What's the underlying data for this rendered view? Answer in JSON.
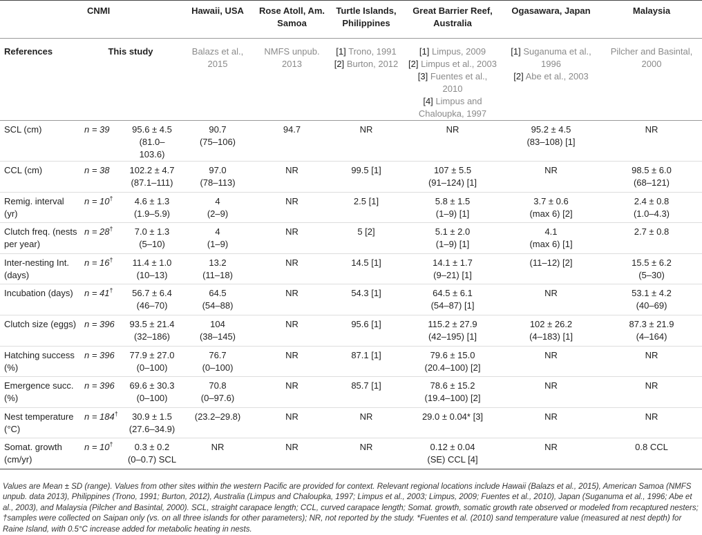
{
  "table": {
    "headers": [
      "CNMI",
      "Hawaii, USA",
      "Rose Atoll, Am. Samoa",
      "Turtle Islands, Philippines",
      "Great Barrier Reef, Australia",
      "Ogasawara, Japan",
      "Malaysia"
    ],
    "references": {
      "label": "References",
      "cells": [
        [
          {
            "text": "This study"
          }
        ],
        [
          {
            "text": "Balazs et al., 2015"
          }
        ],
        [
          {
            "text": "NMFS unpub. 2013"
          }
        ],
        [
          {
            "tag": "[1]",
            "text": "Trono, 1991"
          },
          {
            "tag": "[2]",
            "text": "Burton, 2012"
          }
        ],
        [
          {
            "tag": "[1]",
            "text": "Limpus, 2009"
          },
          {
            "tag": "[2]",
            "text": "Limpus et al., 2003"
          },
          {
            "tag": "[3]",
            "text": "Fuentes et al., 2010"
          },
          {
            "tag": "[4]",
            "text": "Limpus and Chaloupka, 1997"
          }
        ],
        [
          {
            "tag": "[1]",
            "text": "Suganuma et al., 1996"
          },
          {
            "tag": "[2]",
            "text": "Abe et al., 2003"
          }
        ],
        [
          {
            "text": "Pilcher and Basintal, 2000"
          }
        ]
      ]
    },
    "rows": [
      {
        "label": "SCL (cm)",
        "n": "n = 39",
        "cells": [
          [
            "95.6 ± 4.5",
            "(81.0–103.6)"
          ],
          [
            "90.7",
            "(75–106)"
          ],
          [
            "94.7"
          ],
          [
            "NR"
          ],
          [
            "NR"
          ],
          [
            "95.2 ± 4.5",
            "(83–108) [1]"
          ],
          [
            "NR"
          ]
        ]
      },
      {
        "label": "CCL (cm)",
        "n": "n = 38",
        "cells": [
          [
            "102.2 ± 4.7",
            "(87.1–111)"
          ],
          [
            "97.0",
            "(78–113)"
          ],
          [
            "NR"
          ],
          [
            "99.5 [1]"
          ],
          [
            "107 ± 5.5",
            "(91–124) [1]"
          ],
          [
            "NR"
          ],
          [
            "98.5 ± 6.0",
            "(68–121)"
          ]
        ]
      },
      {
        "label": "Remig. interval (yr)",
        "n": "n = 10",
        "note": "†",
        "cells": [
          [
            "4.6 ± 1.3",
            "(1.9–5.9)"
          ],
          [
            "4",
            "(2–9)"
          ],
          [
            "NR"
          ],
          [
            "2.5 [1]"
          ],
          [
            "5.8 ± 1.5",
            "(1–9) [1]"
          ],
          [
            "3.7 ± 0.6",
            "(max 6) [2]"
          ],
          [
            "2.4 ± 0.8",
            "(1.0–4.3)"
          ]
        ]
      },
      {
        "label": "Clutch freq. (nests per year)",
        "n": "n = 28",
        "note": "†",
        "cells": [
          [
            "7.0 ± 1.3",
            "(5–10)"
          ],
          [
            "4",
            "(1–9)"
          ],
          [
            "NR"
          ],
          [
            "5 [2]"
          ],
          [
            "5.1 ± 2.0",
            "(1–9) [1]"
          ],
          [
            "4.1",
            "(max 6) [1]"
          ],
          [
            "2.7 ± 0.8"
          ]
        ]
      },
      {
        "label": "Inter-nesting Int. (days)",
        "n": "n = 16",
        "note": "†",
        "cells": [
          [
            "11.4 ± 1.0",
            "(10–13)"
          ],
          [
            "13.2",
            "(11–18)"
          ],
          [
            "NR"
          ],
          [
            "14.5 [1]"
          ],
          [
            "14.1 ± 1.7",
            "(9–21) [1]"
          ],
          [
            "(11–12) [2]"
          ],
          [
            "15.5 ± 6.2",
            "(5–30)"
          ]
        ]
      },
      {
        "label": "Incubation (days)",
        "n": "n = 41",
        "note": "†",
        "cells": [
          [
            "56.7 ± 6.4",
            "(46–70)"
          ],
          [
            "64.5",
            "(54–88)"
          ],
          [
            "NR"
          ],
          [
            "54.3 [1]"
          ],
          [
            "64.5 ± 6.1",
            "(54–87) [1]"
          ],
          [
            "NR"
          ],
          [
            "53.1 ± 4.2",
            "(40–69)"
          ]
        ]
      },
      {
        "label": "Clutch size (eggs)",
        "n": "n = 396",
        "cells": [
          [
            "93.5 ± 21.4",
            "(32–186)"
          ],
          [
            "104",
            "(38–145)"
          ],
          [
            "NR"
          ],
          [
            "95.6 [1]"
          ],
          [
            "115.2 ± 27.9",
            "(42–195) [1]"
          ],
          [
            "102 ± 26.2",
            "(4–183) [1]"
          ],
          [
            "87.3 ± 21.9",
            "(4–164)"
          ]
        ]
      },
      {
        "label": "Hatching success (%)",
        "n": "n = 396",
        "cells": [
          [
            "77.9 ± 27.0",
            "(0–100)"
          ],
          [
            "76.7",
            "(0–100)"
          ],
          [
            "NR"
          ],
          [
            "87.1 [1]"
          ],
          [
            "79.6 ± 15.0",
            "(20.4–100) [2]"
          ],
          [
            "NR"
          ],
          [
            "NR"
          ]
        ]
      },
      {
        "label": "Emergence succ. (%)",
        "n": "n = 396",
        "cells": [
          [
            "69.6 ± 30.3",
            "(0–100)"
          ],
          [
            "70.8",
            "(0–97.6)"
          ],
          [
            "NR"
          ],
          [
            "85.7 [1]"
          ],
          [
            "78.6 ± 15.2",
            "(19.4–100) [2]"
          ],
          [
            "NR"
          ],
          [
            "NR"
          ]
        ]
      },
      {
        "label": "Nest temperature (°C)",
        "n": "n = 184",
        "note": "†",
        "cells": [
          [
            "30.9 ± 1.5",
            "(27.6–34.9)"
          ],
          [
            "(23.2–29.8)"
          ],
          [
            "NR"
          ],
          [
            "NR"
          ],
          [
            "29.0 ± 0.04* [3]"
          ],
          [
            "NR"
          ],
          [
            "NR"
          ]
        ]
      },
      {
        "label": "Somat. growth (cm/yr)",
        "n": "n = 10",
        "note": "†",
        "cells": [
          [
            "0.3 ± 0.2",
            "(0–0.7) SCL"
          ],
          [
            "NR"
          ],
          [
            "NR"
          ],
          [
            "NR"
          ],
          [
            "0.12 ± 0.04",
            "(SE) CCL [4]"
          ],
          [
            "NR"
          ],
          [
            "0.8 CCL"
          ]
        ]
      }
    ]
  },
  "footnote": "Values are Mean ± SD (range). Values from other sites within the western Pacific are provided for context. Relevant regional locations include Hawaii (Balazs et al., 2015), American Samoa (NMFS unpub. data 2013), Philippines (Trono, 1991; Burton, 2012), Australia (Limpus and Chaloupka, 1997; Limpus et al., 2003; Limpus, 2009; Fuentes et al., 2010), Japan (Suganuma et al., 1996; Abe et al., 2003), and Malaysia (Pilcher and Basintal, 2000). SCL, straight carapace length; CCL, curved carapace length; Somat. growth, somatic growth rate observed or modeled from recaptured nesters; †samples were collected on Saipan only (vs. on all three islands for other parameters); NR, not reported by the study. *Fuentes et al. (2010) sand temperature value (measured at nest depth) for Raine Island, with 0.5°C increase added for metabolic heating in nests."
}
